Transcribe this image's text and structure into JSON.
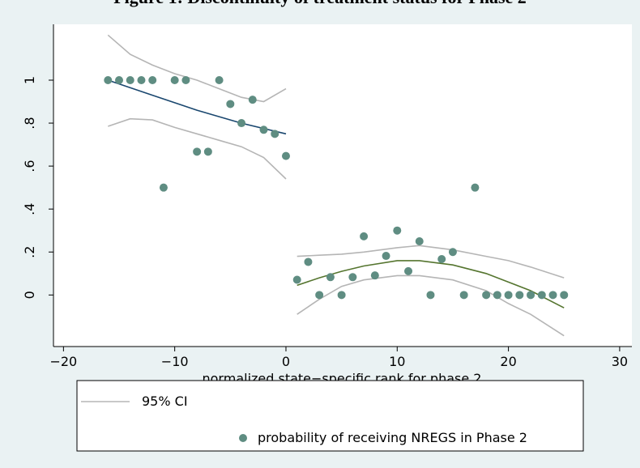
{
  "chart_data": {
    "type": "scatter",
    "title": "Figure 1: Discontinuity of treatment status for Phase 2",
    "x_label": "normalized state−specific rank for phase 2",
    "xlim": [
      -20.9,
      31.1
    ],
    "ylim": [
      -0.24,
      1.26
    ],
    "xticks": [
      {
        "value": -20,
        "label": "−20"
      },
      {
        "value": -10,
        "label": "−10"
      },
      0,
      10,
      20,
      30
    ],
    "yticks": [
      0,
      {
        "value": 0.2,
        "label": ".2"
      },
      {
        "value": 0.4,
        "label": ".4"
      },
      {
        "value": 0.6,
        "label": ".6"
      },
      {
        "value": 0.8,
        "label": ".8"
      },
      1
    ],
    "grid": false,
    "series": [
      {
        "name": "95% CI",
        "type": "line",
        "color": "#b5b5b5",
        "x": [
          -16,
          -14,
          -12,
          -10,
          -8,
          -6,
          -4,
          -2,
          0
        ],
        "values": [
          1.21,
          1.12,
          1.07,
          1.03,
          1.0,
          0.96,
          0.92,
          0.9,
          0.96
        ]
      },
      {
        "type": "line",
        "color": "#b5b5b5",
        "x": [
          -16,
          -14,
          -12,
          -10,
          -8,
          -6,
          -4,
          -2,
          0
        ],
        "values": [
          0.785,
          0.82,
          0.815,
          0.78,
          0.75,
          0.72,
          0.69,
          0.64,
          0.54
        ]
      },
      {
        "type": "line",
        "color": "#1a476f",
        "x": [
          -16,
          -12,
          -8,
          -4,
          0
        ],
        "values": [
          1.0,
          0.93,
          0.86,
          0.8,
          0.75
        ]
      },
      {
        "type": "line",
        "color": "#b5b5b5",
        "x": [
          1,
          3,
          5,
          7,
          10,
          12,
          15,
          18,
          20,
          22,
          25
        ],
        "values": [
          0.18,
          0.185,
          0.19,
          0.2,
          0.22,
          0.23,
          0.21,
          0.18,
          0.16,
          0.13,
          0.08
        ]
      },
      {
        "type": "line",
        "color": "#b5b5b5",
        "x": [
          1,
          3,
          5,
          7,
          10,
          12,
          15,
          18,
          20,
          22,
          25
        ],
        "values": [
          -0.09,
          -0.02,
          0.04,
          0.07,
          0.09,
          0.09,
          0.07,
          0.02,
          -0.04,
          -0.09,
          -0.19
        ]
      },
      {
        "type": "line",
        "color": "#55752f",
        "x": [
          1,
          3,
          5,
          7,
          10,
          12,
          15,
          18,
          20,
          22,
          25
        ],
        "values": [
          0.045,
          0.08,
          0.11,
          0.135,
          0.16,
          0.16,
          0.14,
          0.1,
          0.06,
          0.02,
          -0.06
        ]
      },
      {
        "name": "probability of receiving NREGS in Phase 2",
        "type": "scatter",
        "color": "#5f8d82",
        "x": [
          -16,
          -15,
          -14,
          -13,
          -12,
          -11,
          -10,
          -9,
          -8,
          -7,
          -6,
          -5,
          -4,
          -3,
          -2,
          -1,
          0,
          1,
          2,
          3,
          4,
          5,
          6,
          7,
          8,
          9,
          10,
          11,
          12,
          13,
          14,
          15,
          16,
          17,
          18,
          19,
          20,
          21,
          22,
          23,
          24,
          25
        ],
        "values": [
          1,
          1,
          1,
          1,
          1,
          0.5,
          1,
          1,
          0.667,
          0.667,
          1,
          0.889,
          0.8,
          0.909,
          0.769,
          0.75,
          0.647,
          0.071,
          0.154,
          0,
          0.083,
          0,
          0.083,
          0.273,
          0.091,
          0.182,
          0.3,
          0.111,
          0.25,
          0,
          0.167,
          0.2,
          0,
          0.5,
          0,
          0,
          0,
          0,
          0,
          0,
          0,
          0
        ]
      }
    ]
  }
}
